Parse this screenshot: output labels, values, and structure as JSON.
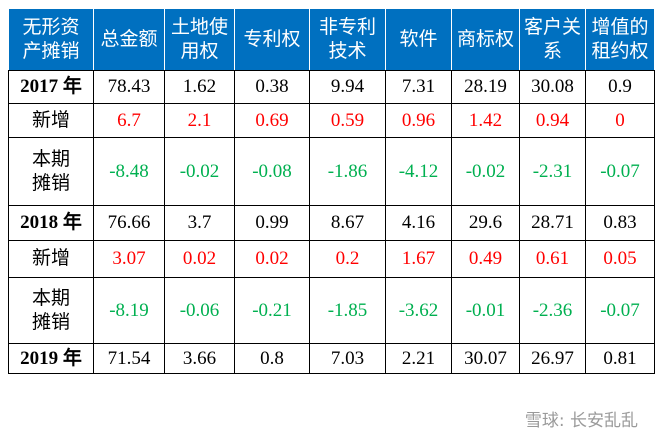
{
  "table": {
    "header": [
      [
        "无形资",
        "产摊销"
      ],
      [
        "总金额"
      ],
      [
        "土地使",
        "用权"
      ],
      [
        "专利权"
      ],
      [
        "非专利",
        "技术"
      ],
      [
        "软件"
      ],
      [
        "商标权"
      ],
      [
        "客户关",
        "系"
      ],
      [
        "增值的",
        "租约权"
      ]
    ],
    "header_color": "#0070c0",
    "rows": [
      {
        "label": [
          "2017 年"
        ],
        "color": "#000000",
        "values": [
          "78.43",
          "1.62",
          "0.38",
          "9.94",
          "7.31",
          "28.19",
          "30.08",
          "0.9"
        ]
      },
      {
        "label": [
          "新增"
        ],
        "color": "#ff0000",
        "values": [
          "6.7",
          "2.1",
          "0.69",
          "0.59",
          "0.96",
          "1.42",
          "0.94",
          "0"
        ]
      },
      {
        "label": [
          "本期",
          "摊销"
        ],
        "color": "#00b050",
        "values": [
          "-8.48",
          "-0.02",
          "-0.08",
          "-1.86",
          "-4.12",
          "-0.02",
          "-2.31",
          "-0.07"
        ]
      },
      {
        "label": [
          "2018 年"
        ],
        "color": "#000000",
        "values": [
          "76.66",
          "3.7",
          "0.99",
          "8.67",
          "4.16",
          "29.6",
          "28.71",
          "0.83"
        ]
      },
      {
        "label": [
          "新增"
        ],
        "color": "#ff0000",
        "values": [
          "3.07",
          "0.02",
          "0.02",
          "0.2",
          "1.67",
          "0.49",
          "0.61",
          "0.05"
        ]
      },
      {
        "label": [
          "本期",
          "摊销"
        ],
        "color": "#00b050",
        "values": [
          "-8.19",
          "-0.06",
          "-0.21",
          "-1.85",
          "-3.62",
          "-0.01",
          "-2.36",
          "-0.07"
        ]
      },
      {
        "label": [
          "2019 年"
        ],
        "color": "#000000",
        "values": [
          "71.54",
          "3.66",
          "0.8",
          "7.03",
          "2.21",
          "30.07",
          "26.97",
          "0.81"
        ]
      }
    ]
  },
  "watermark": "雪球: 长安乱乱"
}
